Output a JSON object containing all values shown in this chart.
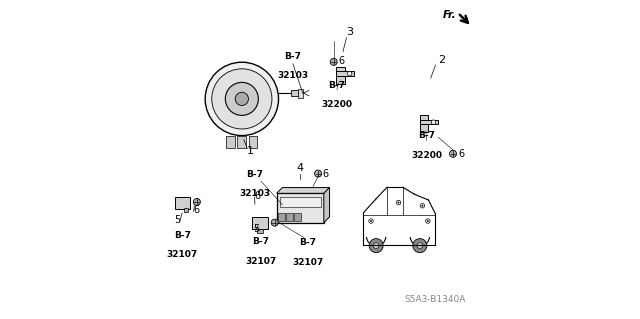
{
  "background_color": "#ffffff",
  "diagram_code": "S5A3-B1340A",
  "fr_label": "Fr.",
  "line_color": "#000000",
  "text_color": "#000000",
  "font_size_label": 7,
  "font_size_ref": 6.5,
  "font_size_code": 6
}
